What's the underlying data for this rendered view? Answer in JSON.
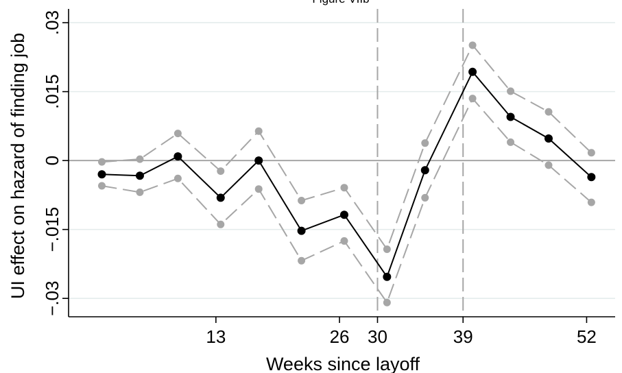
{
  "chart_data": {
    "type": "line",
    "title": "Figure VIIb",
    "xlabel": "Weeks since layoff",
    "ylabel": "UI effect on hazard of finding job",
    "xlim": [
      -2.5,
      55
    ],
    "ylim": [
      -0.034,
      0.033
    ],
    "xticks": [
      13,
      26,
      30,
      39,
      52
    ],
    "yticks": [
      -0.03,
      -0.015,
      0,
      0.015,
      0.03
    ],
    "ytick_labels": [
      "−.03",
      "−.015",
      "0",
      ".015",
      ".03"
    ],
    "vlines": [
      30,
      39
    ],
    "hline": 0,
    "grid": true,
    "legend": "none",
    "x": [
      1,
      5,
      9,
      13.5,
      17.5,
      22,
      26.5,
      31,
      35,
      40,
      44,
      48,
      52.5
    ],
    "series": [
      {
        "role": "estimate",
        "color": "#000000",
        "style": "solid",
        "values": [
          -0.003,
          -0.0033,
          0.0009,
          -0.0081,
          0.0,
          -0.0153,
          -0.0118,
          -0.0253,
          -0.0021,
          0.0193,
          0.0095,
          0.0048,
          -0.0036
        ]
      },
      {
        "role": "upper-ci",
        "color": "#a6a6a6",
        "style": "dashed",
        "values": [
          -0.0003,
          0.0003,
          0.0059,
          -0.0023,
          0.0064,
          -0.0087,
          -0.0059,
          -0.0193,
          0.0038,
          0.0251,
          0.0151,
          0.0106,
          0.0017
        ]
      },
      {
        "role": "lower-ci",
        "color": "#a6a6a6",
        "style": "dashed",
        "values": [
          -0.0055,
          -0.0069,
          -0.0039,
          -0.0139,
          -0.0062,
          -0.0218,
          -0.0175,
          -0.0309,
          -0.0081,
          0.0135,
          0.004,
          -0.001,
          -0.0091
        ]
      }
    ]
  }
}
